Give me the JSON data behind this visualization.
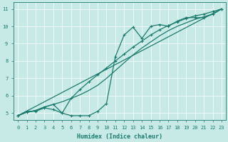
{
  "xlabel": "Humidex (Indice chaleur)",
  "plot_bg_color": "#c8eae6",
  "grid_color": "#ffffff",
  "line_color": "#1a7a6e",
  "xlim": [
    -0.5,
    23.5
  ],
  "ylim": [
    4.6,
    11.4
  ],
  "yticks": [
    5,
    6,
    7,
    8,
    9,
    10,
    11
  ],
  "xticks": [
    0,
    1,
    2,
    3,
    4,
    5,
    6,
    7,
    8,
    9,
    10,
    11,
    12,
    13,
    14,
    15,
    16,
    17,
    18,
    19,
    20,
    21,
    22,
    23
  ],
  "series": [
    {
      "x": [
        0,
        1,
        2,
        3,
        4,
        5,
        6,
        7,
        8,
        9,
        10,
        11,
        12,
        13,
        14,
        15,
        16,
        17,
        18,
        19,
        20,
        21,
        22,
        23
      ],
      "y": [
        4.85,
        5.1,
        5.1,
        5.3,
        5.2,
        5.0,
        4.85,
        4.85,
        4.85,
        5.1,
        5.55,
        8.25,
        9.5,
        9.95,
        9.3,
        10.0,
        10.1,
        10.0,
        10.3,
        10.5,
        10.5,
        10.5,
        10.7,
        11.0
      ],
      "marker": "+",
      "markersize": 3.5,
      "linewidth": 0.9
    },
    {
      "x": [
        0,
        23
      ],
      "y": [
        4.85,
        11.0
      ],
      "marker": null,
      "markersize": 0,
      "linewidth": 0.9
    },
    {
      "x": [
        0,
        1,
        2,
        3,
        4,
        5,
        6,
        7,
        8,
        9,
        10,
        11,
        12,
        13,
        14,
        15,
        16,
        17,
        18,
        19,
        20,
        21,
        22,
        23
      ],
      "y": [
        4.85,
        5.05,
        5.15,
        5.35,
        5.5,
        5.65,
        5.85,
        6.05,
        6.3,
        6.6,
        7.0,
        7.45,
        7.9,
        8.35,
        8.75,
        9.1,
        9.45,
        9.75,
        10.0,
        10.2,
        10.4,
        10.55,
        10.7,
        11.0
      ],
      "marker": null,
      "markersize": 0,
      "linewidth": 0.9
    },
    {
      "x": [
        0,
        1,
        2,
        3,
        4,
        5,
        6,
        7,
        8,
        9,
        10,
        11,
        12,
        13,
        14,
        15,
        16,
        17,
        18,
        19,
        20,
        21,
        22,
        23
      ],
      "y": [
        4.85,
        5.05,
        5.15,
        5.35,
        5.5,
        5.0,
        5.85,
        6.35,
        6.8,
        7.2,
        7.6,
        8.0,
        8.4,
        8.8,
        9.15,
        9.5,
        9.8,
        10.05,
        10.25,
        10.45,
        10.6,
        10.7,
        10.85,
        11.0
      ],
      "marker": "+",
      "markersize": 3.5,
      "linewidth": 0.9
    }
  ]
}
